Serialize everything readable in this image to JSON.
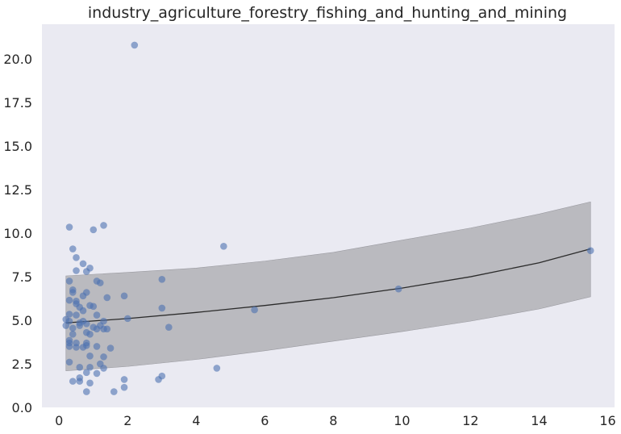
{
  "chart_data": {
    "type": "scatter",
    "title": "industry_agriculture_forestry_fishing_and_hunting_and_mining",
    "xlabel": "",
    "ylabel": "",
    "xlim": [
      -0.5,
      16.2
    ],
    "ylim": [
      0,
      22
    ],
    "xticks": [
      0,
      2,
      4,
      6,
      8,
      10,
      12,
      14,
      16
    ],
    "xtick_labels": [
      "0",
      "2",
      "4",
      "6",
      "8",
      "10",
      "12",
      "14",
      "16"
    ],
    "yticks": [
      0,
      2.5,
      5,
      7.5,
      10,
      12.5,
      15,
      17.5,
      20
    ],
    "ytick_labels": [
      "0.0",
      "2.5",
      "5.0",
      "7.5",
      "10.0",
      "12.5",
      "15.0",
      "17.5",
      "20.0"
    ],
    "grid": false,
    "colors": {
      "background": "#eaeaf2",
      "points": "#4c72b0",
      "band": "#a9a9ad",
      "line": "#2b2b2b"
    },
    "points": [
      {
        "x": 2.2,
        "y": 20.8
      },
      {
        "x": 0.3,
        "y": 10.35
      },
      {
        "x": 1.3,
        "y": 10.45
      },
      {
        "x": 1.0,
        "y": 10.2
      },
      {
        "x": 0.4,
        "y": 9.1
      },
      {
        "x": 4.8,
        "y": 9.25
      },
      {
        "x": 0.5,
        "y": 8.6
      },
      {
        "x": 0.7,
        "y": 8.25
      },
      {
        "x": 0.9,
        "y": 8.0
      },
      {
        "x": 0.5,
        "y": 7.85
      },
      {
        "x": 0.8,
        "y": 7.8
      },
      {
        "x": 0.3,
        "y": 7.25
      },
      {
        "x": 1.1,
        "y": 7.25
      },
      {
        "x": 1.2,
        "y": 7.15
      },
      {
        "x": 3.0,
        "y": 7.35
      },
      {
        "x": 0.4,
        "y": 6.75
      },
      {
        "x": 0.4,
        "y": 6.6
      },
      {
        "x": 0.8,
        "y": 6.6
      },
      {
        "x": 0.7,
        "y": 6.4
      },
      {
        "x": 1.9,
        "y": 6.4
      },
      {
        "x": 1.4,
        "y": 6.3
      },
      {
        "x": 0.3,
        "y": 6.15
      },
      {
        "x": 0.5,
        "y": 6.1
      },
      {
        "x": 0.5,
        "y": 5.95
      },
      {
        "x": 0.9,
        "y": 5.85
      },
      {
        "x": 1.0,
        "y": 5.8
      },
      {
        "x": 0.6,
        "y": 5.75
      },
      {
        "x": 3.0,
        "y": 5.7
      },
      {
        "x": 5.7,
        "y": 5.6
      },
      {
        "x": 0.7,
        "y": 5.55
      },
      {
        "x": 0.3,
        "y": 5.35
      },
      {
        "x": 0.5,
        "y": 5.3
      },
      {
        "x": 1.1,
        "y": 5.3
      },
      {
        "x": 2.0,
        "y": 5.1
      },
      {
        "x": 0.2,
        "y": 5.05
      },
      {
        "x": 0.3,
        "y": 4.95
      },
      {
        "x": 0.7,
        "y": 4.95
      },
      {
        "x": 1.3,
        "y": 4.95
      },
      {
        "x": 0.6,
        "y": 4.85
      },
      {
        "x": 0.8,
        "y": 4.8
      },
      {
        "x": 0.2,
        "y": 4.7
      },
      {
        "x": 0.6,
        "y": 4.7
      },
      {
        "x": 1.2,
        "y": 4.7
      },
      {
        "x": 1.0,
        "y": 4.6
      },
      {
        "x": 3.2,
        "y": 4.6
      },
      {
        "x": 0.4,
        "y": 4.55
      },
      {
        "x": 1.1,
        "y": 4.5
      },
      {
        "x": 1.3,
        "y": 4.5
      },
      {
        "x": 1.4,
        "y": 4.5
      },
      {
        "x": 0.8,
        "y": 4.3
      },
      {
        "x": 0.4,
        "y": 4.2
      },
      {
        "x": 0.9,
        "y": 4.2
      },
      {
        "x": 0.3,
        "y": 3.85
      },
      {
        "x": 0.3,
        "y": 3.7
      },
      {
        "x": 0.5,
        "y": 3.7
      },
      {
        "x": 0.8,
        "y": 3.7
      },
      {
        "x": 0.8,
        "y": 3.55
      },
      {
        "x": 0.3,
        "y": 3.5
      },
      {
        "x": 0.5,
        "y": 3.45
      },
      {
        "x": 0.7,
        "y": 3.45
      },
      {
        "x": 1.1,
        "y": 3.5
      },
      {
        "x": 1.5,
        "y": 3.4
      },
      {
        "x": 0.9,
        "y": 2.95
      },
      {
        "x": 1.3,
        "y": 2.9
      },
      {
        "x": 0.3,
        "y": 2.6
      },
      {
        "x": 1.2,
        "y": 2.5
      },
      {
        "x": 0.6,
        "y": 2.3
      },
      {
        "x": 0.9,
        "y": 2.3
      },
      {
        "x": 1.3,
        "y": 2.25
      },
      {
        "x": 4.6,
        "y": 2.25
      },
      {
        "x": 0.8,
        "y": 2.0
      },
      {
        "x": 1.1,
        "y": 1.95
      },
      {
        "x": 0.6,
        "y": 1.7
      },
      {
        "x": 3.0,
        "y": 1.8
      },
      {
        "x": 0.4,
        "y": 1.5
      },
      {
        "x": 0.6,
        "y": 1.5
      },
      {
        "x": 0.9,
        "y": 1.4
      },
      {
        "x": 1.9,
        "y": 1.6
      },
      {
        "x": 2.9,
        "y": 1.6
      },
      {
        "x": 1.9,
        "y": 1.15
      },
      {
        "x": 0.8,
        "y": 0.9
      },
      {
        "x": 1.6,
        "y": 0.9
      },
      {
        "x": 9.9,
        "y": 6.8
      },
      {
        "x": 15.5,
        "y": 9.0
      }
    ],
    "trend_line": [
      {
        "x": 0.2,
        "y": 4.85
      },
      {
        "x": 2.0,
        "y": 5.1
      },
      {
        "x": 4.0,
        "y": 5.45
      },
      {
        "x": 6.0,
        "y": 5.85
      },
      {
        "x": 8.0,
        "y": 6.3
      },
      {
        "x": 10.0,
        "y": 6.85
      },
      {
        "x": 12.0,
        "y": 7.5
      },
      {
        "x": 14.0,
        "y": 8.3
      },
      {
        "x": 15.5,
        "y": 9.1
      }
    ],
    "band_upper": [
      {
        "x": 0.2,
        "y": 7.55
      },
      {
        "x": 2.0,
        "y": 7.75
      },
      {
        "x": 4.0,
        "y": 8.0
      },
      {
        "x": 6.0,
        "y": 8.4
      },
      {
        "x": 8.0,
        "y": 8.9
      },
      {
        "x": 10.0,
        "y": 9.6
      },
      {
        "x": 12.0,
        "y": 10.3
      },
      {
        "x": 14.0,
        "y": 11.1
      },
      {
        "x": 15.5,
        "y": 11.8
      }
    ],
    "band_lower": [
      {
        "x": 0.2,
        "y": 2.1
      },
      {
        "x": 2.0,
        "y": 2.35
      },
      {
        "x": 4.0,
        "y": 2.75
      },
      {
        "x": 6.0,
        "y": 3.25
      },
      {
        "x": 8.0,
        "y": 3.8
      },
      {
        "x": 10.0,
        "y": 4.35
      },
      {
        "x": 12.0,
        "y": 4.95
      },
      {
        "x": 14.0,
        "y": 5.65
      },
      {
        "x": 15.5,
        "y": 6.35
      }
    ]
  }
}
